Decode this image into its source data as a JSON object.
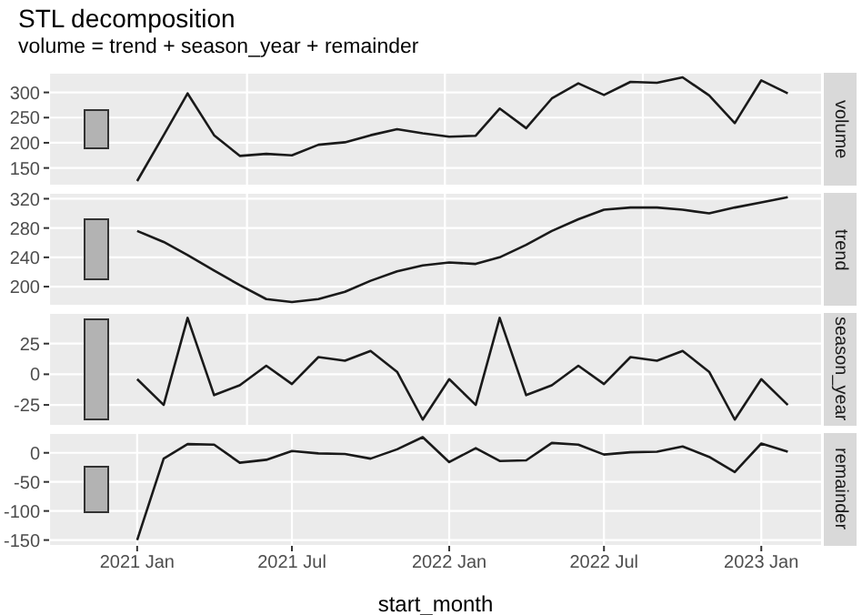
{
  "chart_data": [
    {
      "type": "line",
      "title": "STL decomposition",
      "subtitle": "volume = trend + season_year + remainder",
      "x": [
        "2021-01",
        "2021-02",
        "2021-03",
        "2021-04",
        "2021-05",
        "2021-06",
        "2021-07",
        "2021-08",
        "2021-09",
        "2021-10",
        "2021-11",
        "2021-12",
        "2022-01",
        "2022-02",
        "2022-03",
        "2022-04",
        "2022-05",
        "2022-06",
        "2022-07",
        "2022-08",
        "2022-09",
        "2022-10",
        "2022-11",
        "2022-12",
        "2023-01",
        "2023-02"
      ],
      "series": [
        {
          "name": "volume",
          "color": "#1a1a1a",
          "values": [
            124,
            215,
            298,
            215,
            174,
            178,
            175,
            196,
            201,
            215,
            227,
            219,
            212,
            214,
            268,
            229,
            288,
            318,
            295,
            321,
            319,
            330,
            294,
            239,
            324,
            298
          ]
        }
      ],
      "xlim": [
        "2020-09-20",
        "2023-03-13"
      ],
      "ylim": [
        115,
        339
      ],
      "yticks": [
        150,
        200,
        250,
        300
      ],
      "grid": true,
      "tick_labels": "y"
    },
    {
      "type": "line",
      "x": [
        "2021-01",
        "2021-02",
        "2021-03",
        "2021-04",
        "2021-05",
        "2021-06",
        "2021-07",
        "2021-08",
        "2021-09",
        "2021-10",
        "2021-11",
        "2021-12",
        "2022-01",
        "2022-02",
        "2022-03",
        "2022-04",
        "2022-05",
        "2022-06",
        "2022-07",
        "2022-08",
        "2022-09",
        "2022-10",
        "2022-11",
        "2022-12",
        "2023-01",
        "2023-02"
      ],
      "series": [
        {
          "name": "trend",
          "color": "#1a1a1a",
          "values": [
            276,
            261,
            243,
            222,
            202,
            183,
            179,
            183,
            193,
            208,
            221,
            229,
            233,
            231,
            240,
            257,
            276,
            292,
            305,
            308,
            308,
            305,
            300,
            308,
            315,
            322
          ]
        }
      ],
      "xlim": [
        "2020-09-20",
        "2023-03-13"
      ],
      "ylim": [
        174,
        328
      ],
      "yticks": [
        200,
        240,
        280,
        320
      ],
      "grid": true,
      "tick_labels": "y"
    },
    {
      "type": "line",
      "x": [
        "2021-01",
        "2021-02",
        "2021-03",
        "2021-04",
        "2021-05",
        "2021-06",
        "2021-07",
        "2021-08",
        "2021-09",
        "2021-10",
        "2021-11",
        "2021-12",
        "2022-01",
        "2022-02",
        "2022-03",
        "2022-04",
        "2022-05",
        "2022-06",
        "2022-07",
        "2022-08",
        "2022-09",
        "2022-10",
        "2022-11",
        "2022-12",
        "2023-01",
        "2023-02"
      ],
      "series": [
        {
          "name": "season_year",
          "color": "#1a1a1a",
          "values": [
            -4,
            -25,
            46,
            -17,
            -9,
            7,
            -8,
            14,
            11,
            19,
            2,
            -37,
            -4,
            -25,
            46,
            -17,
            -9,
            7,
            -8,
            14,
            11,
            19,
            2,
            -37,
            -4,
            -25
          ]
        }
      ],
      "xlim": [
        "2020-09-20",
        "2023-03-13"
      ],
      "ylim": [
        -42,
        50
      ],
      "yticks": [
        -25,
        0,
        25
      ],
      "grid": true,
      "tick_labels": "y"
    },
    {
      "type": "line",
      "xlabel": "start_month",
      "x": [
        "2021-01",
        "2021-02",
        "2021-03",
        "2021-04",
        "2021-05",
        "2021-06",
        "2021-07",
        "2021-08",
        "2021-09",
        "2021-10",
        "2021-11",
        "2021-12",
        "2022-01",
        "2022-02",
        "2022-03",
        "2022-04",
        "2022-05",
        "2022-06",
        "2022-07",
        "2022-08",
        "2022-09",
        "2022-10",
        "2022-11",
        "2022-12",
        "2023-01",
        "2023-02"
      ],
      "series": [
        {
          "name": "remainder",
          "color": "#1a1a1a",
          "values": [
            -150,
            -10,
            15,
            14,
            -17,
            -12,
            3,
            -1,
            -2,
            -10,
            6,
            27,
            -16,
            8,
            -14,
            -13,
            17,
            14,
            -3,
            1,
            2,
            11,
            -7,
            -33,
            16,
            2
          ]
        }
      ],
      "xlim": [
        "2020-09-20",
        "2023-03-13"
      ],
      "ylim": [
        -160,
        34
      ],
      "yticks": [
        -150,
        -100,
        -50,
        0
      ],
      "xticks": [
        {
          "value": "2021-01",
          "label": "2021 Jan"
        },
        {
          "value": "2021-07",
          "label": "2021 Jul"
        },
        {
          "value": "2022-01",
          "label": "2022 Jan"
        },
        {
          "value": "2022-07",
          "label": "2022 Jul"
        },
        {
          "value": "2023-01",
          "label": "2023 Jan"
        }
      ],
      "grid": true
    }
  ]
}
